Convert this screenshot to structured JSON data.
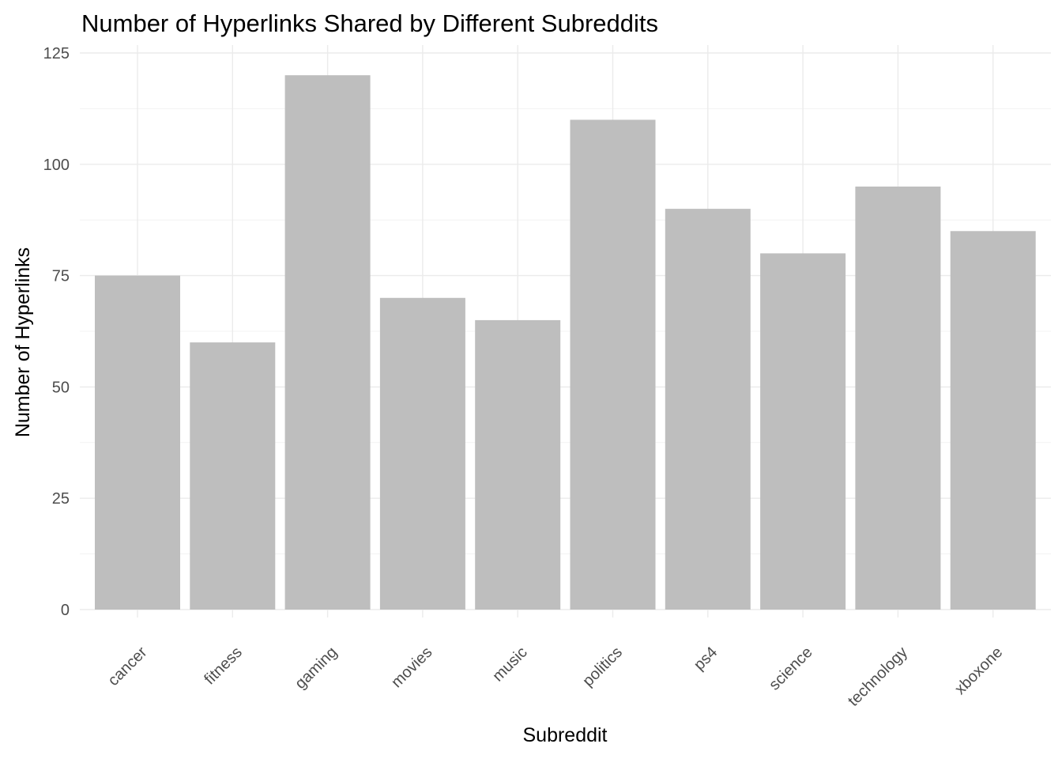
{
  "chart_data": {
    "type": "bar",
    "title": "Number of Hyperlinks Shared by Different Subreddits",
    "xlabel": "Subreddit",
    "ylabel": "Number of Hyperlinks",
    "categories": [
      "cancer",
      "fitness",
      "gaming",
      "movies",
      "music",
      "politics",
      "ps4",
      "science",
      "technology",
      "xboxone"
    ],
    "values": [
      75,
      60,
      120,
      70,
      65,
      110,
      90,
      80,
      95,
      85
    ],
    "ylim": [
      0,
      125
    ],
    "yticks": [
      0,
      25,
      50,
      75,
      100,
      125
    ],
    "grid": true,
    "legend": "none",
    "bar_color": "#bebebe"
  }
}
